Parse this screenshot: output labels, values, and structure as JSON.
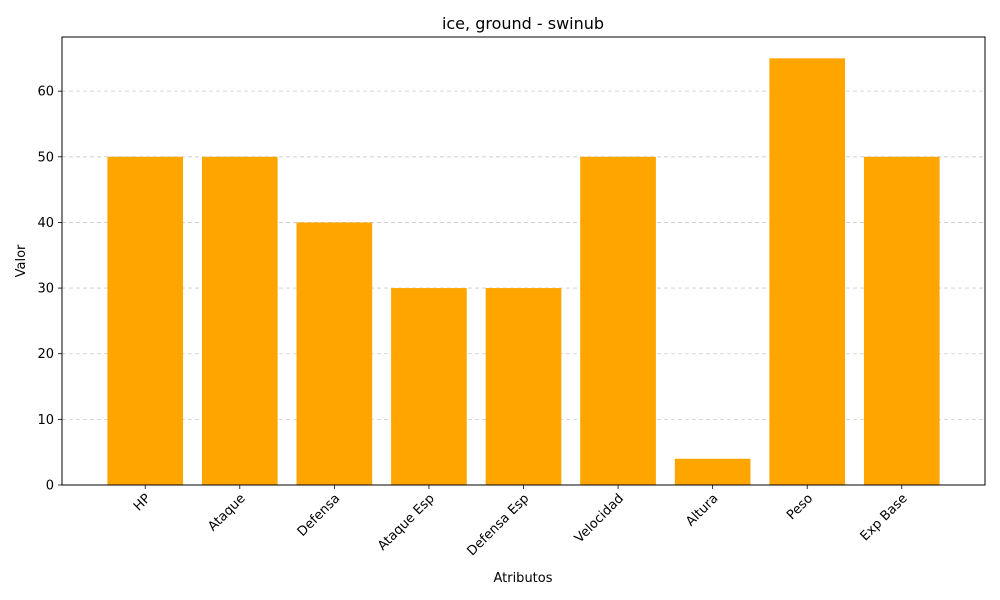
{
  "chart_data": {
    "type": "bar",
    "title": "ice, ground - swinub",
    "xlabel": "Atributos",
    "ylabel": "Valor",
    "categories": [
      "HP",
      "Ataque",
      "Defensa",
      "Ataque Esp",
      "Defensa Esp",
      "Velocidad",
      "Altura",
      "Peso",
      "Exp Base"
    ],
    "values": [
      50,
      50,
      40,
      30,
      30,
      50,
      4,
      65,
      50
    ],
    "ylim": [
      0,
      68.25
    ],
    "yticks": [
      0,
      10,
      20,
      30,
      40,
      50,
      60
    ],
    "grid": "y-axis dashed",
    "bar_color": "#ffa500",
    "tick_rotation_deg": 45
  }
}
